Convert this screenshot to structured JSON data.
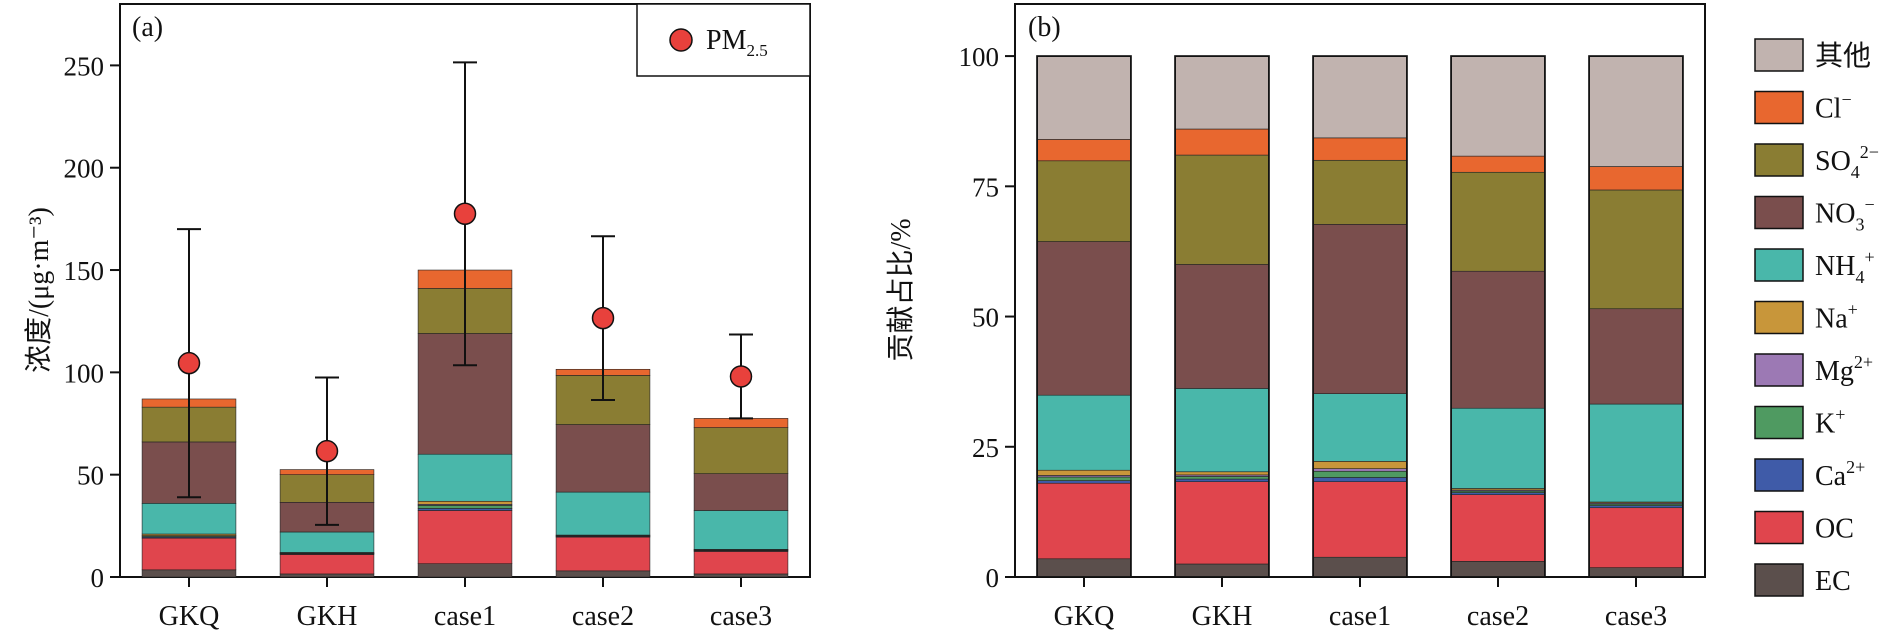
{
  "chart_data": [
    {
      "panel_label": "(a)",
      "type": "bar",
      "stacked": true,
      "ylabel": "浓度/(μg·m⁻³)",
      "ylim": [
        0,
        280
      ],
      "yticks": [
        0,
        50,
        100,
        150,
        200,
        250
      ],
      "categories": [
        "GKQ",
        "GKH",
        "case1",
        "case2",
        "case3"
      ],
      "series": [
        {
          "name": "EC",
          "values": [
            3.5,
            1.5,
            6.5,
            3.0,
            1.5
          ]
        },
        {
          "name": "OC",
          "values": [
            15.5,
            9.5,
            26.0,
            16.5,
            11.0
          ]
        },
        {
          "name": "Ca2+",
          "values": [
            0.5,
            0.3,
            1.0,
            0.3,
            0.3
          ]
        },
        {
          "name": "K+",
          "values": [
            0.5,
            0.2,
            1.5,
            0.2,
            0.3
          ]
        },
        {
          "name": "Mg2+",
          "values": [
            0.2,
            0.2,
            0.5,
            0.2,
            0.2
          ]
        },
        {
          "name": "Na+",
          "values": [
            0.8,
            0.3,
            1.5,
            0.3,
            0.2
          ]
        },
        {
          "name": "NH4+",
          "values": [
            15.0,
            10.0,
            23.0,
            21.0,
            19.0
          ]
        },
        {
          "name": "NO3-",
          "values": [
            30.0,
            14.5,
            59.0,
            33.0,
            18.0
          ]
        },
        {
          "name": "SO42-",
          "values": [
            17.0,
            13.5,
            22.0,
            24.0,
            22.5
          ]
        },
        {
          "name": "Cl-",
          "values": [
            4.0,
            2.5,
            9.0,
            3.0,
            4.5
          ]
        }
      ],
      "pm25": {
        "legend": "PM",
        "legend_sub": "2.5",
        "mean": [
          104.5,
          61.5,
          177.5,
          126.5,
          98.0
        ],
        "upper": [
          170.0,
          97.5,
          251.5,
          166.5,
          118.5
        ],
        "lower": [
          39.0,
          25.5,
          103.5,
          86.5,
          77.5
        ]
      }
    },
    {
      "panel_label": "(b)",
      "type": "bar",
      "stacked": true,
      "ylabel": "贡献占比/%",
      "ylim": [
        0,
        110
      ],
      "yticks": [
        0,
        25,
        50,
        75,
        100
      ],
      "categories": [
        "GKQ",
        "GKH",
        "case1",
        "case2",
        "case3"
      ],
      "series": [
        {
          "name": "EC",
          "values": [
            3.5,
            2.5,
            3.8,
            3.0,
            1.8
          ]
        },
        {
          "name": "OC",
          "values": [
            14.5,
            15.8,
            14.5,
            12.8,
            11.5
          ]
        },
        {
          "name": "Ca2+",
          "values": [
            0.5,
            0.5,
            0.8,
            0.4,
            0.4
          ]
        },
        {
          "name": "K+",
          "values": [
            0.7,
            0.5,
            1.2,
            0.3,
            0.3
          ]
        },
        {
          "name": "Mg2+",
          "values": [
            0.3,
            0.3,
            0.5,
            0.2,
            0.2
          ]
        },
        {
          "name": "Na+",
          "values": [
            1.0,
            0.6,
            1.4,
            0.3,
            0.2
          ]
        },
        {
          "name": "NH4+",
          "values": [
            14.4,
            16.0,
            13.0,
            15.4,
            18.8
          ]
        },
        {
          "name": "NO3-",
          "values": [
            29.5,
            23.8,
            32.5,
            26.3,
            18.3
          ]
        },
        {
          "name": "SO42-",
          "values": [
            15.5,
            21.0,
            12.3,
            19.0,
            22.8
          ]
        },
        {
          "name": "Cl-",
          "values": [
            4.1,
            5.0,
            4.3,
            3.1,
            4.5
          ]
        },
        {
          "name": "其他",
          "values": [
            16.0,
            14.0,
            15.7,
            19.2,
            21.2
          ]
        }
      ]
    }
  ],
  "legend": [
    {
      "key": "其他",
      "base": "其他",
      "sub": "",
      "sup": ""
    },
    {
      "key": "Cl-",
      "base": "Cl",
      "sub": "",
      "sup": "−"
    },
    {
      "key": "SO42-",
      "base": "SO",
      "sub": "4",
      "sup": "2−"
    },
    {
      "key": "NO3-",
      "base": "NO",
      "sub": "3",
      "sup": "−"
    },
    {
      "key": "NH4+",
      "base": "NH",
      "sub": "4",
      "sup": "+"
    },
    {
      "key": "Na+",
      "base": "Na",
      "sub": "",
      "sup": "+"
    },
    {
      "key": "Mg2+",
      "base": "Mg",
      "sub": "",
      "sup": "2+"
    },
    {
      "key": "K+",
      "base": "K",
      "sub": "",
      "sup": "+"
    },
    {
      "key": "Ca2+",
      "base": "Ca",
      "sub": "",
      "sup": "2+"
    },
    {
      "key": "OC",
      "base": "OC",
      "sub": "",
      "sup": ""
    },
    {
      "key": "EC",
      "base": "EC",
      "sub": "",
      "sup": ""
    }
  ],
  "colors": {
    "EC": "#5b4f4c",
    "OC": "#e0454d",
    "Ca2+": "#3f5ba8",
    "K+": "#4f9a61",
    "Mg2+": "#9c79b4",
    "Na+": "#c8963a",
    "NH4+": "#49b7aa",
    "NO3-": "#7a4e4d",
    "SO42-": "#8a7d33",
    "Cl-": "#e8672f",
    "其他": "#c1b3af",
    "pm25_marker": "#e8413c"
  }
}
